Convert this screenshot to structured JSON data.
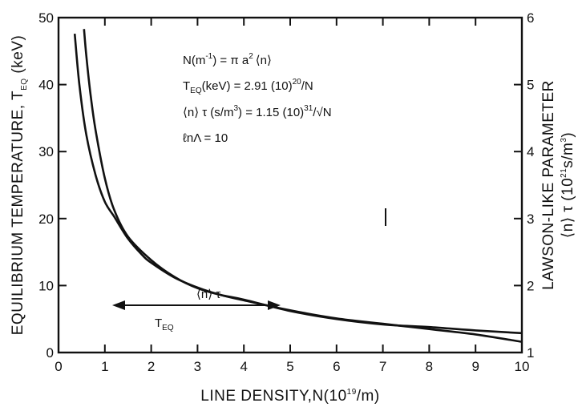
{
  "chart_data": {
    "type": "line",
    "xlabel": "LINE DENSITY,N(10",
    "xlabel_sup": "19",
    "xlabel_end": "/m)",
    "ylabel_left": "EQUILIBRIUM TEMPERATURE, T",
    "ylabel_left_sub": "EQ",
    "ylabel_left_end": " (keV)",
    "ylabel_right_1": "LAWSON-LIKE PARAMETER",
    "ylabel_right_2": "⟨n⟩ τ (10",
    "ylabel_right_2_sup": "21",
    "ylabel_right_2_mid": "s/m",
    "ylabel_right_2_sup2": "3",
    "ylabel_right_2_end": ")",
    "xlim": [
      0,
      10
    ],
    "ylim_left": [
      0,
      50
    ],
    "ylim_right": [
      1,
      6
    ],
    "x_ticks": [
      "0",
      "1",
      "2",
      "3",
      "4",
      "5",
      "6",
      "7",
      "8",
      "9",
      "10"
    ],
    "y_ticks_left": [
      "0",
      "10",
      "20",
      "30",
      "40",
      "50"
    ],
    "y_ticks_right": [
      "1",
      "2",
      "3",
      "4",
      "5",
      "6"
    ],
    "grid": false,
    "series": [
      {
        "name": "T_EQ",
        "axis": "left",
        "x": [
          0.35,
          0.45,
          0.6,
          0.8,
          1.0,
          1.2,
          1.5,
          1.8,
          2.0,
          2.5,
          3.0,
          3.5,
          4.0,
          5.0,
          6.0,
          7.0,
          8.0,
          9.0,
          10.0
        ],
        "y": [
          47.6,
          40.0,
          32.5,
          26.5,
          22.5,
          20.3,
          17.0,
          14.6,
          13.4,
          11.2,
          9.7,
          8.6,
          7.8,
          6.3,
          5.1,
          4.3,
          3.5,
          2.7,
          1.6
        ]
      },
      {
        "name": "⟨n⟩τ",
        "axis": "right",
        "x": [
          0.55,
          0.6,
          0.7,
          0.8,
          1.0,
          1.2,
          1.5,
          2.0,
          2.5,
          3.0,
          3.5,
          4.0,
          5.0,
          6.0,
          7.0,
          8.0,
          9.0,
          10.0
        ],
        "y": [
          5.83,
          5.43,
          4.8,
          4.32,
          3.6,
          3.13,
          2.73,
          2.38,
          2.13,
          1.96,
          1.86,
          1.79,
          1.62,
          1.5,
          1.42,
          1.38,
          1.33,
          1.29
        ]
      }
    ],
    "annotations": {
      "line1_a": "N(m",
      "line1_sup": "-1",
      "line1_b": ") = π a",
      "line1_sup2": "2",
      "line1_c": "⟨n⟩",
      "line2_a": "T",
      "line2_sub": "EQ",
      "line2_b": "(keV) = 2.91 (10)",
      "line2_sup": "20",
      "line2_c": "/N",
      "line3_a": "⟨n⟩ τ (s/m",
      "line3_sup": "3",
      "line3_b": ") = 1.15 (10)",
      "line3_sup2": "31",
      "line3_c": "/√N",
      "line4": "ℓnΛ = 10",
      "label_ntau": "⟨n⟩ τ",
      "label_teq": "T",
      "label_teq_sub": "EQ"
    }
  }
}
